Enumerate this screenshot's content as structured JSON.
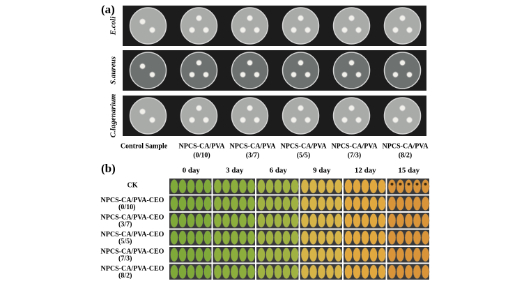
{
  "panel_a": {
    "label": "(a)",
    "rows": [
      "E.coli",
      "S.aureus",
      "C.lagenarium"
    ],
    "columns": [
      [
        "Control Sample"
      ],
      [
        "NPCS-CA/PVA",
        "(0/10)"
      ],
      [
        "NPCS-CA/PVA",
        "(3/7)"
      ],
      [
        "NPCS-CA/PVA",
        "(5/5)"
      ],
      [
        "NPCS-CA/PVA",
        "(7/3)"
      ],
      [
        "NPCS-CA/PVA",
        "(8/2)"
      ]
    ]
  },
  "panel_b": {
    "label": "(b)",
    "columns": [
      "0 day",
      "3 day",
      "6 day",
      "9 day",
      "12 day",
      "15 day"
    ],
    "rows": [
      [
        "CK"
      ],
      [
        "NPCS-CA/PVA-CEO",
        "(0/10)"
      ],
      [
        "NPCS-CA/PVA-CEO",
        "(3/7)"
      ],
      [
        "NPCS-CA/PVA-CEO",
        "(5/5)"
      ],
      [
        "NPCS-CA/PVA-CEO",
        "(7/3)"
      ],
      [
        "NPCS-CA/PVA-CEO",
        "(8/2)"
      ]
    ]
  }
}
